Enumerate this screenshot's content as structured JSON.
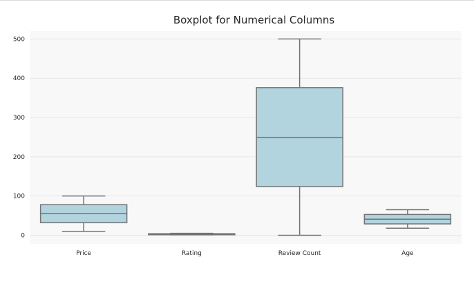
{
  "chart_data": {
    "type": "boxplot",
    "title": "Boxplot for Numerical Columns",
    "xlabel": "",
    "ylabel": "",
    "ylim": [
      -22,
      520
    ],
    "yticks": [
      0,
      100,
      200,
      300,
      400,
      500
    ],
    "categories": [
      "Price",
      "Rating",
      "Review Count",
      "Age"
    ],
    "boxes": [
      {
        "min": 10,
        "q1": 32,
        "median": 55,
        "q3": 78,
        "max": 100
      },
      {
        "min": 1,
        "q1": 2,
        "median": 3,
        "q3": 4,
        "max": 5
      },
      {
        "min": 0,
        "q1": 124,
        "median": 249,
        "q3": 376,
        "max": 500
      },
      {
        "min": 18,
        "q1": 29,
        "median": 41,
        "q3": 53,
        "max": 65
      }
    ],
    "grid": true,
    "colors": {
      "plot_bg": "#f8f8f8",
      "grid": "#e6e6e6",
      "box_fill": "#b2d4df",
      "box_edge": "#737373",
      "text": "#262626"
    }
  }
}
